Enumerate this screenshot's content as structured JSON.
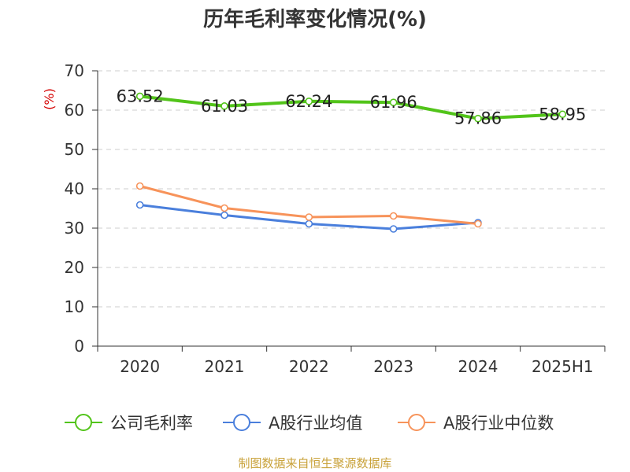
{
  "title": "历年毛利率变化情况(%)",
  "source": "制图数据来自恒生聚源数据库",
  "chart_data": {
    "type": "line",
    "categories": [
      "2020",
      "2021",
      "2022",
      "2023",
      "2024",
      "2025H1"
    ],
    "ylabel": "(%)",
    "ylim": [
      0,
      70
    ],
    "yticks": [
      0,
      10,
      20,
      30,
      40,
      50,
      60,
      70
    ],
    "grid": true,
    "legend_position": "bottom",
    "series": [
      {
        "name": "公司毛利率",
        "color": "#52c41a",
        "values": [
          63.52,
          61.03,
          62.24,
          61.96,
          57.86,
          58.95
        ],
        "labels": [
          "63.52",
          "61.03",
          "62.24",
          "61.96",
          "57.86",
          "58.95"
        ]
      },
      {
        "name": "A股行业均值",
        "color": "#4a7fdc",
        "values": [
          35.9,
          33.3,
          31.1,
          29.8,
          31.4,
          null
        ]
      },
      {
        "name": "A股行业中位数",
        "color": "#f7935a",
        "values": [
          40.7,
          35.1,
          32.8,
          33.1,
          31.1,
          null
        ]
      }
    ]
  }
}
